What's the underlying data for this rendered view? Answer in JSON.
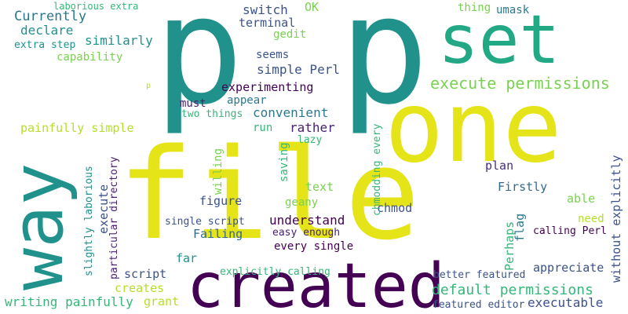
{
  "words": [
    {
      "text": "p",
      "color": "#21918c"
    },
    {
      "text": "p",
      "color": "#21918c"
    },
    {
      "text": "one",
      "color": "#e5e419"
    },
    {
      "text": "file",
      "color": "#e5e419"
    },
    {
      "text": "way",
      "color": "#21918c"
    },
    {
      "text": "created",
      "color": "#440154"
    },
    {
      "text": "set",
      "color": "#22a884"
    },
    {
      "text": "execute permissions",
      "color": "#7ad151"
    },
    {
      "text": "default permissions",
      "color": "#35b779"
    },
    {
      "text": "laborious extra",
      "color": "#35b779"
    },
    {
      "text": "switch",
      "color": "#3b528b"
    },
    {
      "text": "OK",
      "color": "#7ad151"
    },
    {
      "text": "thing",
      "color": "#7ad151"
    },
    {
      "text": "umask",
      "color": "#2a788e"
    },
    {
      "text": "Currently",
      "color": "#2a788e"
    },
    {
      "text": "terminal",
      "color": "#3b528b"
    },
    {
      "text": "declare",
      "color": "#21918c"
    },
    {
      "text": "gedit",
      "color": "#7ad151"
    },
    {
      "text": "similarly",
      "color": "#21918c"
    },
    {
      "text": "extra step",
      "color": "#21918c"
    },
    {
      "text": "capability",
      "color": "#7ad151"
    },
    {
      "text": "seems",
      "color": "#3b528b"
    },
    {
      "text": "simple Perl",
      "color": "#3b528b"
    },
    {
      "text": "experimenting",
      "color": "#440154"
    },
    {
      "text": "appear",
      "color": "#2a788e"
    },
    {
      "text": "must",
      "color": "#482173"
    },
    {
      "text": "convenient",
      "color": "#2a788e"
    },
    {
      "text": "two things",
      "color": "#35b779"
    },
    {
      "text": "painfully simple",
      "color": "#b5de2b"
    },
    {
      "text": "run",
      "color": "#35b779"
    },
    {
      "text": "rather",
      "color": "#482173"
    },
    {
      "text": "lazy",
      "color": "#35b779"
    },
    {
      "text": "plan",
      "color": "#472d7b"
    },
    {
      "text": "Firstly",
      "color": "#31688e"
    },
    {
      "text": "able",
      "color": "#7ad151"
    },
    {
      "text": "text",
      "color": "#7ad151"
    },
    {
      "text": "geany",
      "color": "#7ad151"
    },
    {
      "text": "figure",
      "color": "#3b528b"
    },
    {
      "text": "understand",
      "color": "#440154"
    },
    {
      "text": "chmod",
      "color": "#3b528b"
    },
    {
      "text": "need",
      "color": "#b5de2b"
    },
    {
      "text": "single script",
      "color": "#3b528b"
    },
    {
      "text": "Failing",
      "color": "#31688e"
    },
    {
      "text": "easy enough",
      "color": "#482173"
    },
    {
      "text": "calling Perl",
      "color": "#440154"
    },
    {
      "text": "far",
      "color": "#21918c"
    },
    {
      "text": "every single",
      "color": "#440154"
    },
    {
      "text": "script",
      "color": "#3b528b"
    },
    {
      "text": "explicitly calling",
      "color": "#35b779"
    },
    {
      "text": "appreciate",
      "color": "#3b528b"
    },
    {
      "text": "creates",
      "color": "#b5de2b"
    },
    {
      "text": "better featured",
      "color": "#3b528b"
    },
    {
      "text": "writing painfully",
      "color": "#35b779"
    },
    {
      "text": "grant",
      "color": "#b5de2b"
    },
    {
      "text": "executable",
      "color": "#3b528b"
    },
    {
      "text": "featured editor",
      "color": "#3b528b"
    },
    {
      "text": "p",
      "color": "#b5de2b"
    },
    {
      "text": "slightly laborious",
      "color": "#21918c"
    },
    {
      "text": "particular directory",
      "color": "#482173"
    },
    {
      "text": "execute",
      "color": "#3b528b"
    },
    {
      "text": "willing",
      "color": "#7ad151"
    },
    {
      "text": "saving",
      "color": "#35b779"
    },
    {
      "text": "chmodding every",
      "color": "#35b779"
    },
    {
      "text": "Perhaps",
      "color": "#35b779"
    },
    {
      "text": "flag",
      "color": "#2a788e"
    },
    {
      "text": "without explicitly",
      "color": "#3b528b"
    }
  ]
}
